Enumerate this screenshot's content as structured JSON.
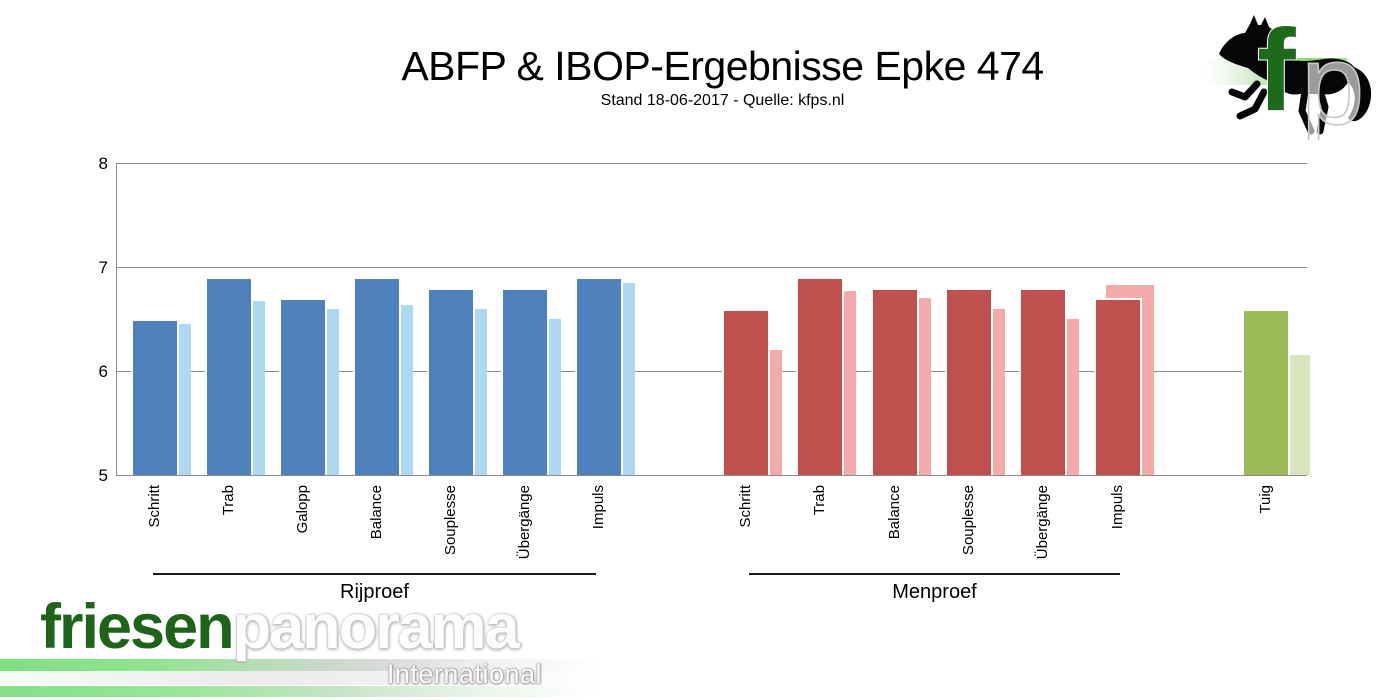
{
  "title": "ABFP & IBOP-Ergebnisse Epke 474",
  "subtitle": "Stand 18-06-2017 - Quelle: kfps.nl",
  "header_logo": {
    "letter_f": "f",
    "letter_p": "p"
  },
  "footer_logo": {
    "friesen": "friesen",
    "panorama": "panorama",
    "international": "International"
  },
  "chart_data": {
    "type": "bar",
    "title": "ABFP & IBOP-Ergebnisse Epke 474",
    "subtitle": "Stand 18-06-2017 - Quelle: kfps.nl",
    "ylim": [
      5,
      8
    ],
    "yticks": [
      8,
      7,
      6,
      5
    ],
    "grid": true,
    "legend_position": "none",
    "bars_per_category": [
      "dark (score)",
      "light (secondary/comparison)"
    ],
    "groups": [
      {
        "label": "Rijproef",
        "categories": [
          "Schritt",
          "Trab",
          "Galopp",
          "Balance",
          "Souplesse",
          "Übergänge",
          "Impuls"
        ],
        "values_dark": [
          6.5,
          6.9,
          6.7,
          6.9,
          6.8,
          6.8,
          6.9
        ],
        "values_light": [
          6.45,
          6.67,
          6.6,
          6.63,
          6.6,
          6.5,
          6.85
        ],
        "color_dark": "#4F81BD",
        "color_light": "#AED8F2"
      },
      {
        "label": "Menproef",
        "categories": [
          "Schritt",
          "Trab",
          "Balance",
          "Souplesse",
          "Übergänge",
          "Impuls"
        ],
        "values_dark": [
          6.6,
          6.9,
          6.8,
          6.8,
          6.8,
          6.7
        ],
        "values_light": [
          6.2,
          6.77,
          6.7,
          6.6,
          6.5,
          6.83
        ],
        "color_dark": "#C0504D",
        "color_light": "#F2ABA9"
      },
      {
        "label": "",
        "categories": [
          "Tuig"
        ],
        "values_dark": [
          6.6
        ],
        "values_light": [
          6.15
        ],
        "color_dark": "#9BBB59",
        "color_light": "#D7E4BC"
      }
    ]
  }
}
